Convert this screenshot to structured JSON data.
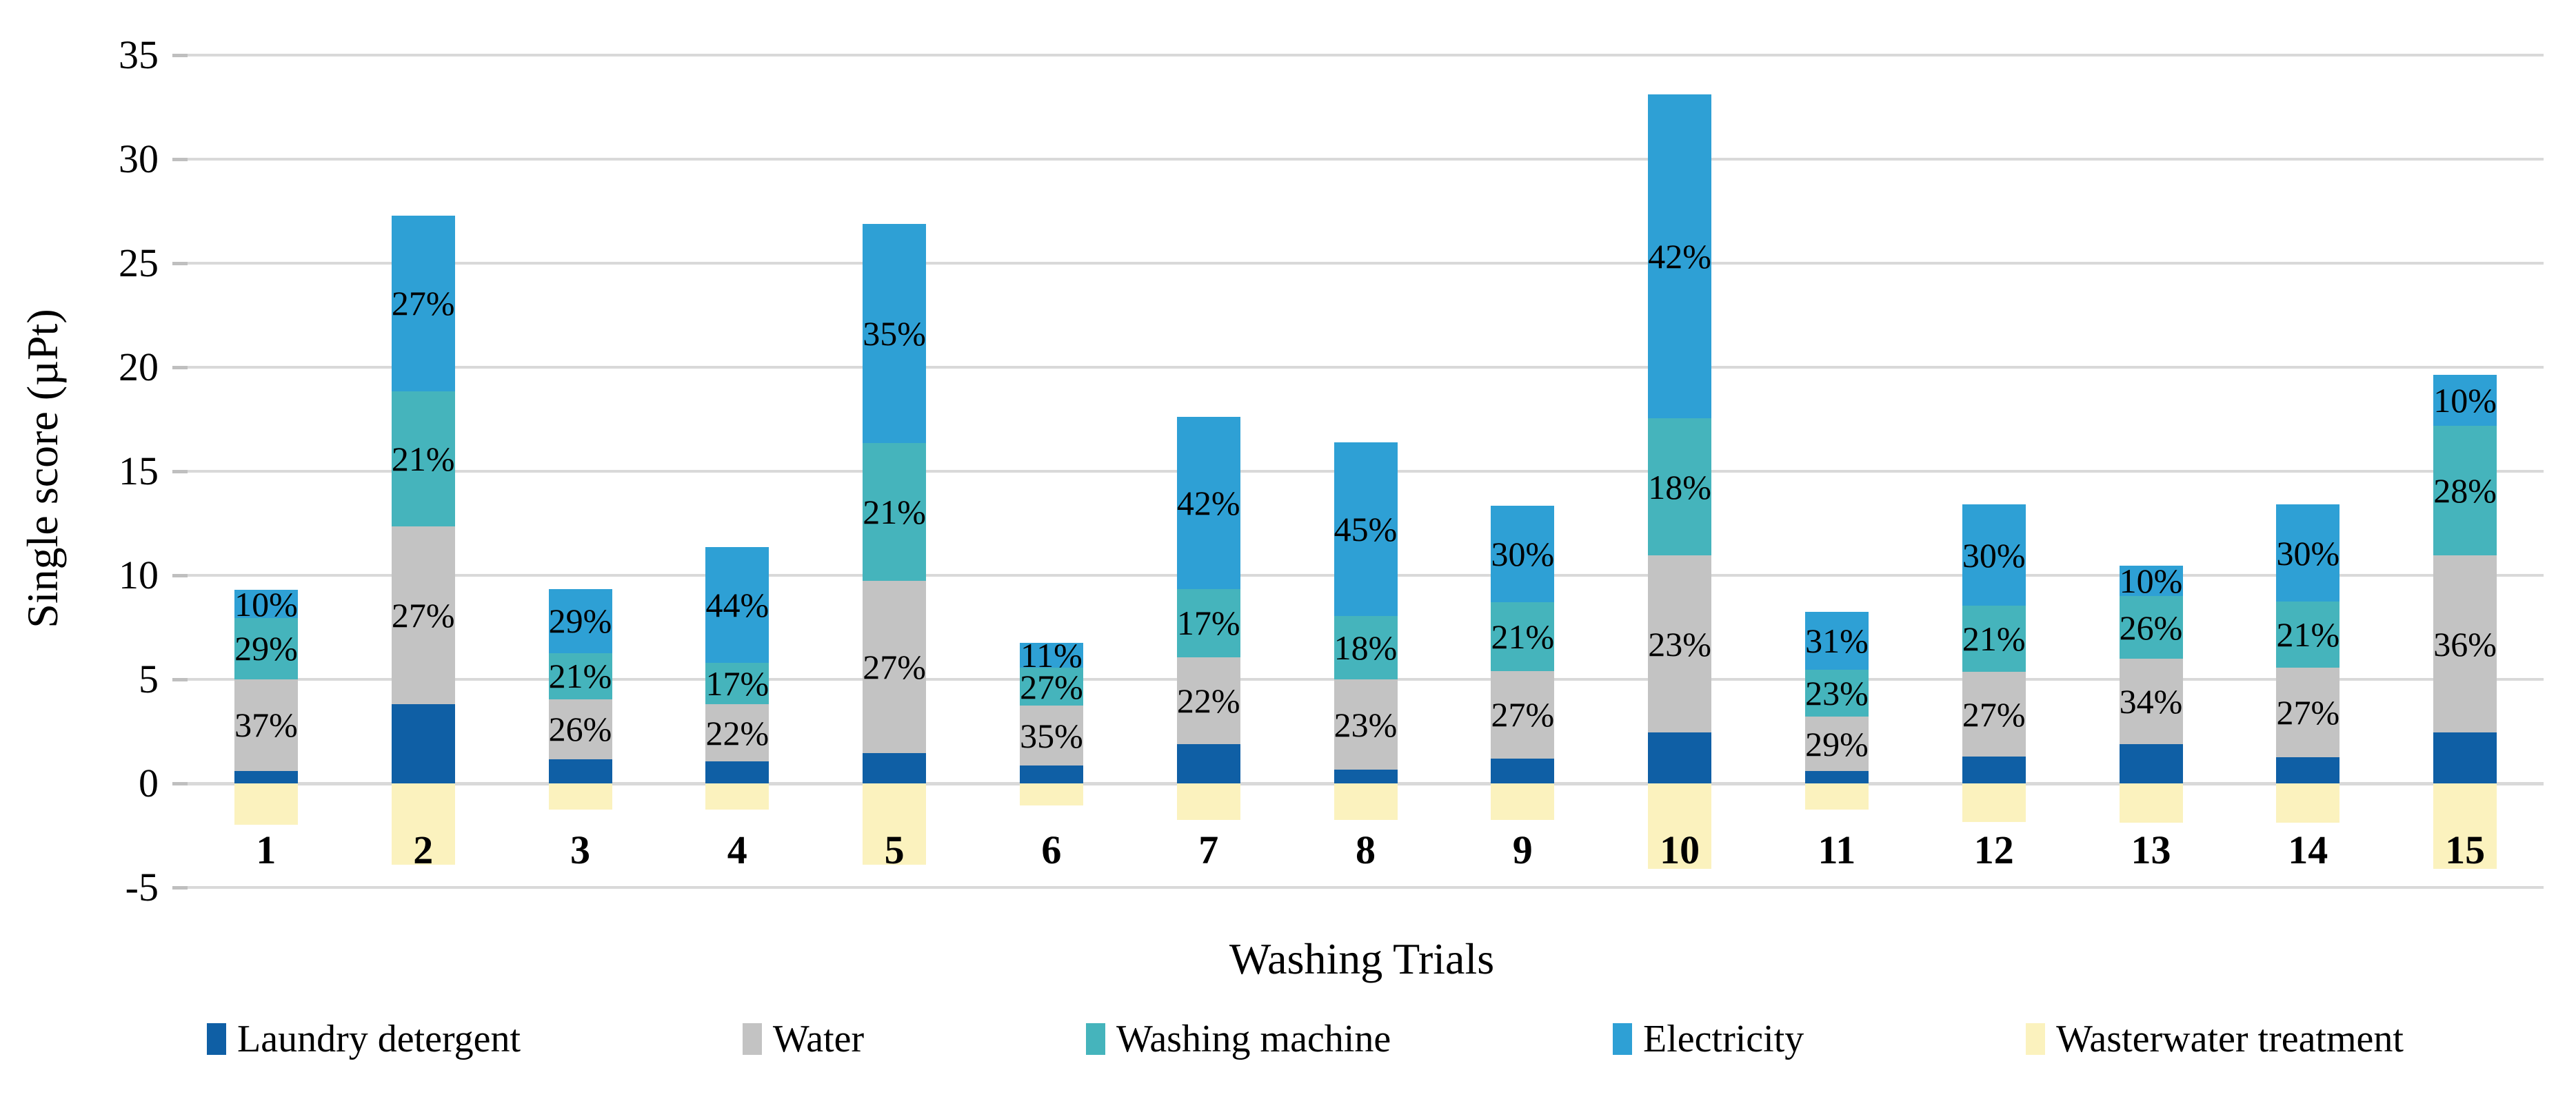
{
  "chart_data": {
    "type": "bar",
    "stacked": true,
    "title": "",
    "xlabel": "Washing Trials",
    "ylabel": "Single score (µPt)",
    "ylim": [
      -5,
      35
    ],
    "ytick_step": 5,
    "yticks": [
      "35",
      "30",
      "25",
      "20",
      "15",
      "10",
      "5",
      "0",
      "-5"
    ],
    "grid": true,
    "legend_position": "bottom",
    "categories": [
      "1",
      "2",
      "3",
      "4",
      "5",
      "6",
      "7",
      "8",
      "9",
      "10",
      "11",
      "12",
      "13",
      "14",
      "15"
    ],
    "series": [
      {
        "name": "Laundry detergent",
        "color": "#0f5fa5",
        "values": [
          0.6,
          3.8,
          1.15,
          1.05,
          1.45,
          0.85,
          1.9,
          0.65,
          1.2,
          2.45,
          0.6,
          1.3,
          1.9,
          1.25,
          2.45
        ]
      },
      {
        "name": "Water",
        "color": "#c3c3c3",
        "values": [
          4.4,
          8.55,
          2.9,
          2.75,
          8.3,
          2.9,
          4.15,
          4.35,
          4.2,
          8.5,
          2.6,
          4.05,
          4.1,
          4.3,
          8.5
        ],
        "labels": [
          "37%",
          "27%",
          "26%",
          "22%",
          "27%",
          "35%",
          "22%",
          "23%",
          "27%",
          "23%",
          "29%",
          "27%",
          "34%",
          "27%",
          "36%"
        ]
      },
      {
        "name": "Washing machine",
        "color": "#45b4bc",
        "values": [
          2.95,
          6.5,
          2.2,
          2.0,
          6.6,
          1.8,
          3.3,
          3.05,
          3.3,
          6.6,
          2.25,
          3.2,
          3.0,
          3.2,
          6.25
        ],
        "labels": [
          "29%",
          "21%",
          "21%",
          "17%",
          "21%",
          "27%",
          "17%",
          "18%",
          "21%",
          "18%",
          "23%",
          "21%",
          "26%",
          "21%",
          "28%"
        ]
      },
      {
        "name": "Electricity",
        "color": "#2ea0d5",
        "values": [
          1.35,
          8.45,
          3.1,
          5.55,
          10.55,
          1.2,
          8.25,
          8.35,
          4.65,
          15.55,
          2.8,
          4.85,
          1.45,
          4.65,
          2.45
        ],
        "labels": [
          "10%",
          "27%",
          "29%",
          "44%",
          "35%",
          "11%",
          "42%",
          "45%",
          "30%",
          "42%",
          "31%",
          "30%",
          "10%",
          "30%",
          "10%"
        ]
      },
      {
        "name": "Wasterwater treatment",
        "color": "#fbf2be",
        "values": [
          -2.0,
          -3.9,
          -1.25,
          -1.25,
          -3.9,
          -1.05,
          -1.75,
          -1.75,
          -1.75,
          -4.1,
          -1.25,
          -1.85,
          -1.9,
          -1.9,
          -4.1
        ]
      }
    ]
  },
  "axes": {
    "x_title": "Washing Trials",
    "y_title": "Single score (µPt)"
  },
  "legend": {
    "items": [
      {
        "label": "Laundry detergent",
        "color": "#0f5fa5"
      },
      {
        "label": "Water",
        "color": "#c3c3c3"
      },
      {
        "label": "Washing machine",
        "color": "#45b4bc"
      },
      {
        "label": "Electricity",
        "color": "#2ea0d5"
      },
      {
        "label": "Wasterwater treatment",
        "color": "#fbf2be"
      }
    ]
  },
  "colors": {
    "gridline": "#d9d9d9",
    "text": "#000000",
    "background": "#ffffff"
  }
}
